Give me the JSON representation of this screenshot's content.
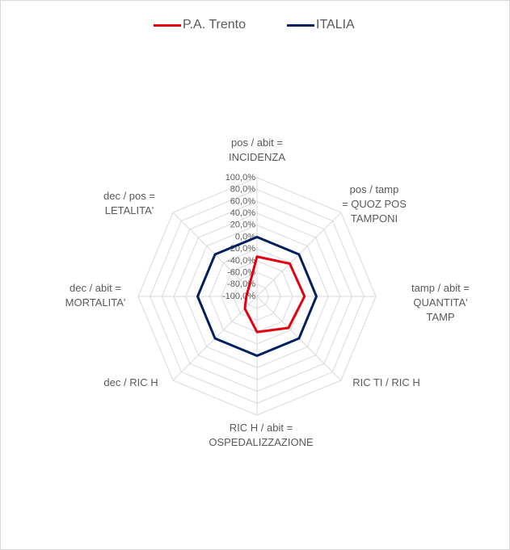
{
  "chart_data": {
    "type": "radar",
    "categories": [
      "pos / abit =\nINCIDENZA",
      "pos / tamp\n= QUOZ POS\nTAMPONI",
      "tamp / abit =\nQUANTITA' TAMP",
      "RIC TI / RIC H",
      "RIC H / abit =\nOSPEDALIZZAZIONE",
      "dec  / RIC H",
      "dec / abit =\nMORTALITA'",
      "dec / pos =\nLETALITA'"
    ],
    "series": [
      {
        "name": "P.A. Trento",
        "color": "#e3000f",
        "values": [
          -33,
          -22,
          -20,
          -25,
          -40,
          -71,
          -82,
          -80
        ]
      },
      {
        "name": "ITALIA",
        "color": "#002060",
        "values": [
          0,
          0,
          0,
          0,
          0,
          0,
          0,
          0
        ]
      }
    ],
    "ylim": [
      -100,
      100
    ],
    "yticks": [
      {
        "value": 100,
        "label": "100,0%"
      },
      {
        "value": 80,
        "label": "80,0%"
      },
      {
        "value": 60,
        "label": "60,0%"
      },
      {
        "value": 40,
        "label": "40,0%"
      },
      {
        "value": 20,
        "label": "20,0%"
      },
      {
        "value": 0,
        "label": "0,0%"
      },
      {
        "value": -20,
        "label": "-20,0%"
      },
      {
        "value": -40,
        "label": "-40,0%"
      },
      {
        "value": -60,
        "label": "-60,0%"
      },
      {
        "value": -80,
        "label": "-80,0%"
      },
      {
        "value": -100,
        "label": "-100,0%"
      }
    ],
    "grid": true,
    "legend": "top"
  }
}
